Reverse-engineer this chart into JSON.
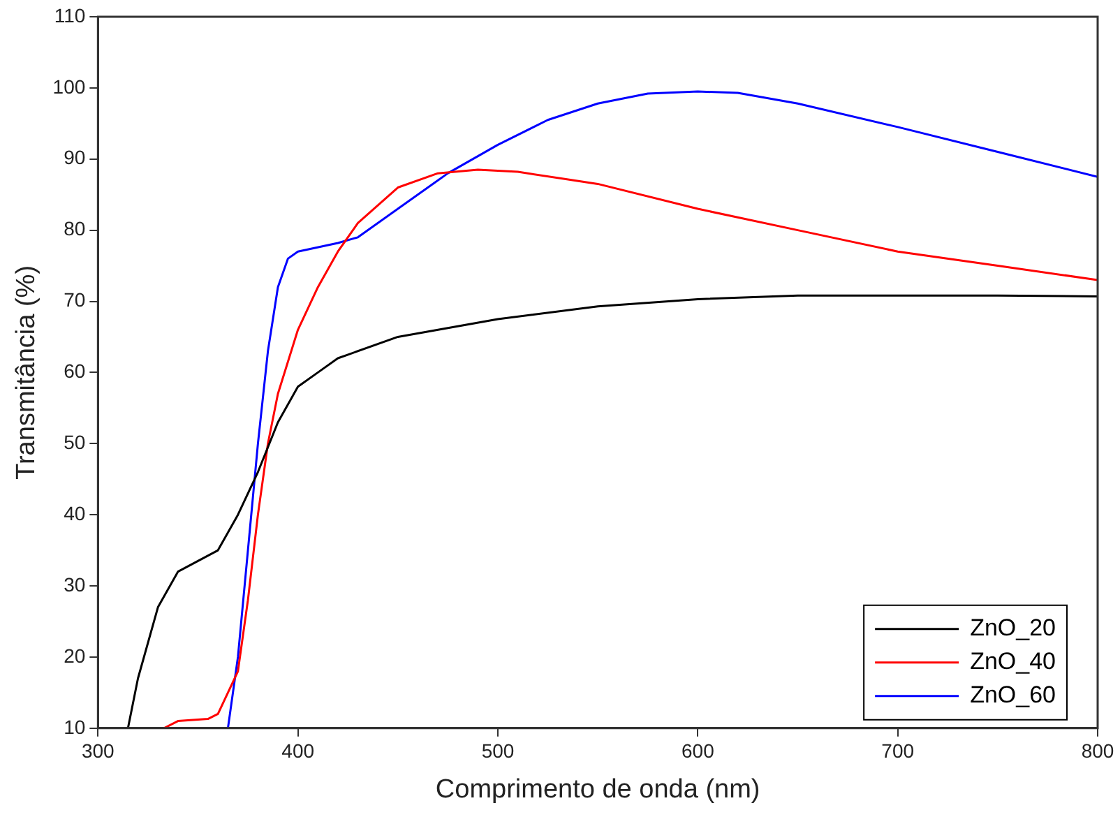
{
  "chart_data": {
    "type": "line",
    "xlabel": "Comprimento de onda (nm)",
    "ylabel": "Transmitância (%)",
    "xlim": [
      300,
      800
    ],
    "xticks": [
      300,
      400,
      500,
      600,
      700,
      800
    ],
    "ylim": [
      10,
      110
    ],
    "yticks": [
      10,
      20,
      30,
      40,
      50,
      60,
      70,
      80,
      90,
      100,
      110
    ],
    "grid": false,
    "legend": "bottom right",
    "marker": "none",
    "line_style": "solid",
    "series": [
      {
        "name": "ZnO_20",
        "color": "#000000",
        "x": [
          315,
          320,
          330,
          340,
          350,
          360,
          370,
          380,
          390,
          400,
          410,
          420,
          450,
          500,
          550,
          600,
          650,
          700,
          750,
          800
        ],
        "values": [
          10,
          17,
          27,
          32,
          33.5,
          35,
          40,
          46,
          53,
          58,
          60,
          62,
          65,
          67.5,
          69.3,
          70.3,
          70.8,
          70.8,
          70.8,
          70.7
        ]
      },
      {
        "name": "ZnO_40",
        "color": "#ff0000",
        "x": [
          333,
          340,
          355,
          360,
          370,
          375,
          380,
          385,
          390,
          400,
          410,
          420,
          430,
          450,
          470,
          490,
          510,
          550,
          600,
          650,
          700,
          750,
          800
        ],
        "values": [
          10,
          11,
          11.3,
          12,
          18,
          28,
          40,
          50,
          57,
          66,
          72,
          77,
          81,
          86,
          88,
          88.5,
          88.2,
          86.5,
          83,
          80,
          77,
          75,
          73
        ]
      },
      {
        "name": "ZnO_60",
        "color": "#0000ff",
        "x": [
          365,
          370,
          375,
          380,
          385,
          390,
          395,
          400,
          420,
          430,
          450,
          475,
          500,
          525,
          550,
          575,
          600,
          620,
          650,
          700,
          750,
          800
        ],
        "values": [
          10,
          20,
          35,
          50,
          63,
          72,
          76,
          77,
          78.2,
          79,
          83,
          88,
          92,
          95.5,
          97.8,
          99.2,
          99.5,
          99.3,
          97.8,
          94.5,
          91,
          87.5
        ]
      }
    ]
  }
}
